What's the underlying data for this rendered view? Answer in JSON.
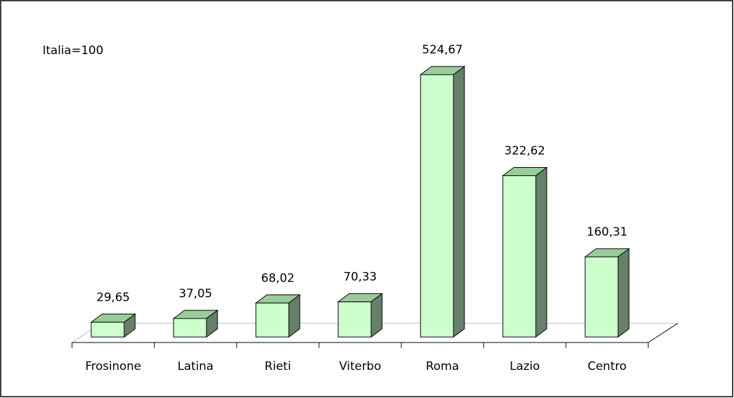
{
  "chart_data": {
    "type": "bar3d",
    "annotation": "Italia=100",
    "categories": [
      "Frosinone",
      "Latina",
      "Rieti",
      "Viterbo",
      "Roma",
      "Lazio",
      "Centro"
    ],
    "values": [
      29.65,
      37.05,
      68.02,
      70.33,
      524.67,
      322.62,
      160.31
    ],
    "value_labels": [
      "29,65",
      "37,05",
      "68,02",
      "70,33",
      "524,67",
      "322,62",
      "160,31"
    ],
    "colors": {
      "front": "#ccffcc",
      "top": "#99cc99",
      "side": "#66806a"
    }
  }
}
